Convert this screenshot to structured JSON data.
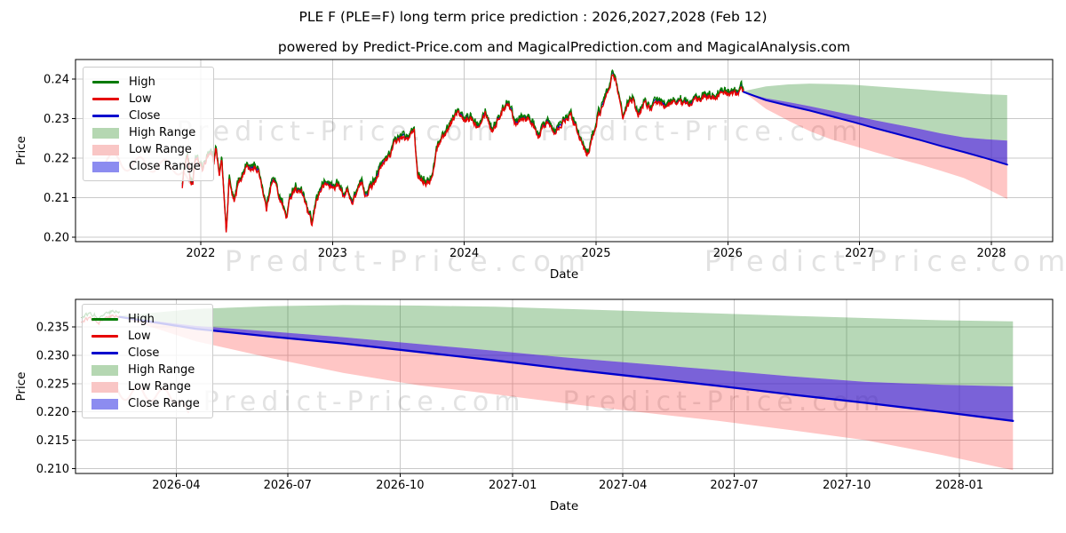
{
  "title": "PLE F (PLE=F) long term price prediction : 2026,2027,2028 (Feb 12)",
  "subtitle": "powered by Predict-Price.com and MagicalPrediction.com and MagicalAnalysis.com",
  "watermark": {
    "text": "Predict-Price.com",
    "signature_color": "rgba(225,70,70,0.40)"
  },
  "colors": {
    "grid": "#c9c9c9",
    "spine": "#000000",
    "high_line": "#007a00",
    "low_line": "#e60000",
    "close_line": "#0000cd",
    "high_range_fill": "rgba(15,125,15,0.30)",
    "low_range_fill": "rgba(255,35,30,0.26)",
    "close_range_fill": "rgba(25,25,230,0.58)"
  },
  "legend": {
    "items": [
      {
        "label": "High",
        "swatch": "line",
        "color": "#007a00"
      },
      {
        "label": "Low",
        "swatch": "line",
        "color": "#e60000"
      },
      {
        "label": "Close",
        "swatch": "line",
        "color": "#0000cd"
      },
      {
        "label": "High Range",
        "swatch": "patch",
        "color": "#b5d7b2"
      },
      {
        "label": "Low Range",
        "swatch": "patch",
        "color": "#f9c6c5"
      },
      {
        "label": "Close Range",
        "swatch": "patch",
        "color": "#8c8cf0"
      }
    ]
  },
  "chart_data": [
    {
      "type": "line",
      "title": "",
      "xlabel": "Date",
      "ylabel": "Price",
      "xlim": [
        2021.05,
        2028.465
      ],
      "ylim": [
        0.1989,
        0.245
      ],
      "grid": true,
      "legend_position": "upper left",
      "x_ticks": [
        {
          "v": 2022,
          "label": "2022"
        },
        {
          "v": 2023,
          "label": "2023"
        },
        {
          "v": 2024,
          "label": "2024"
        },
        {
          "v": 2025,
          "label": "2025"
        },
        {
          "v": 2026,
          "label": "2026"
        },
        {
          "v": 2027,
          "label": "2027"
        },
        {
          "v": 2028,
          "label": "2028"
        }
      ],
      "y_ticks": [
        {
          "v": 0.2,
          "label": "0.20"
        },
        {
          "v": 0.21,
          "label": "0.21"
        },
        {
          "v": 0.22,
          "label": "0.22"
        },
        {
          "v": 0.23,
          "label": "0.23"
        },
        {
          "v": 0.24,
          "label": "0.24"
        }
      ],
      "historical": {
        "description": "daily High/Low/Close, Nov 2021 - Feb 2026; High ~ Low + 0.001, Close between",
        "anchors_t": [
          2021.86,
          2021.88,
          2021.9,
          2021.92,
          2021.94,
          2021.96,
          2021.99,
          2022.02,
          2022.05,
          2022.08,
          2022.1,
          2022.115,
          2022.14,
          2022.16,
          2022.18,
          2022.195,
          2022.215,
          2022.235,
          2022.255,
          2022.285,
          2022.32,
          2022.35,
          2022.38,
          2022.41,
          2022.45,
          2022.475,
          2022.5,
          2022.53,
          2022.56,
          2022.59,
          2022.62,
          2022.65,
          2022.68,
          2022.71,
          2022.74,
          2022.78,
          2022.81,
          2022.845,
          2022.88,
          2022.92,
          2022.96,
          2023.0,
          2023.04,
          2023.08,
          2023.12,
          2023.15,
          2023.18,
          2023.22,
          2023.25,
          2023.3,
          2023.35,
          2023.4,
          2023.45,
          2023.48,
          2023.52,
          2023.56,
          2023.6,
          2023.62,
          2023.645,
          2023.68,
          2023.72,
          2023.76,
          2023.79,
          2023.82,
          2023.86,
          2023.9,
          2023.95,
          2024.0,
          2024.05,
          2024.1,
          2024.16,
          2024.21,
          2024.27,
          2024.33,
          2024.38,
          2024.44,
          2024.5,
          2024.56,
          2024.62,
          2024.68,
          2024.74,
          2024.8,
          2024.85,
          2024.9,
          2024.93,
          2024.97,
          2025.02,
          2025.07,
          2025.11,
          2025.13,
          2025.16,
          2025.2,
          2025.24,
          2025.28,
          2025.32,
          2025.36,
          2025.42,
          2025.48,
          2025.54,
          2025.6,
          2025.66,
          2025.72,
          2025.78,
          2025.84,
          2025.9,
          2025.96,
          2026.02,
          2026.07,
          2026.1,
          2026.12
        ],
        "anchors_price": [
          0.213,
          0.2182,
          0.2212,
          0.2145,
          0.2128,
          0.22,
          0.2185,
          0.217,
          0.2208,
          0.2215,
          0.219,
          0.2226,
          0.2152,
          0.219,
          0.2092,
          0.2003,
          0.2148,
          0.211,
          0.2085,
          0.2135,
          0.2158,
          0.2182,
          0.2166,
          0.218,
          0.2154,
          0.2112,
          0.2068,
          0.213,
          0.2144,
          0.2106,
          0.2084,
          0.2046,
          0.21,
          0.2124,
          0.2118,
          0.2104,
          0.2066,
          0.2028,
          0.2096,
          0.2126,
          0.2134,
          0.2124,
          0.2133,
          0.2105,
          0.2118,
          0.2082,
          0.2112,
          0.2136,
          0.2108,
          0.213,
          0.2164,
          0.2192,
          0.2218,
          0.2242,
          0.2252,
          0.2244,
          0.2262,
          0.2268,
          0.2158,
          0.2148,
          0.2136,
          0.2152,
          0.2222,
          0.2248,
          0.2262,
          0.2292,
          0.2316,
          0.229,
          0.2302,
          0.2282,
          0.2318,
          0.2268,
          0.2306,
          0.2345,
          0.229,
          0.2304,
          0.23,
          0.225,
          0.2292,
          0.227,
          0.2288,
          0.2312,
          0.228,
          0.223,
          0.2205,
          0.2248,
          0.231,
          0.2345,
          0.239,
          0.2415,
          0.2385,
          0.2296,
          0.233,
          0.2346,
          0.231,
          0.2338,
          0.2326,
          0.2338,
          0.233,
          0.2346,
          0.2336,
          0.2342,
          0.2348,
          0.2354,
          0.2358,
          0.2362,
          0.2366,
          0.236,
          0.2372,
          0.2368
        ]
      },
      "prediction": {
        "t": [
          2026.12,
          2026.29,
          2026.46,
          2026.62,
          2026.79,
          2026.96,
          2027.12,
          2027.29,
          2027.46,
          2027.62,
          2027.79,
          2027.96,
          2028.12
        ],
        "close": [
          0.2368,
          0.2347,
          0.2333,
          0.2321,
          0.2306,
          0.2291,
          0.2276,
          0.2261,
          0.2246,
          0.2231,
          0.2216,
          0.22,
          0.2184
        ],
        "close_range_upper": [
          0.2368,
          0.2352,
          0.2342,
          0.2332,
          0.232,
          0.2308,
          0.2296,
          0.2285,
          0.2274,
          0.2263,
          0.2253,
          0.2248,
          0.2245
        ],
        "high_range_upper": [
          0.237,
          0.2382,
          0.2387,
          0.2389,
          0.2388,
          0.2386,
          0.2382,
          0.2378,
          0.2374,
          0.237,
          0.2366,
          0.2362,
          0.236
        ],
        "low_range_lower": [
          0.2368,
          0.2325,
          0.2295,
          0.2269,
          0.2247,
          0.2231,
          0.2215,
          0.2199,
          0.2184,
          0.2168,
          0.215,
          0.2124,
          0.2097
        ]
      }
    },
    {
      "type": "line",
      "title": "",
      "xlabel": "Date",
      "ylabel": "Price",
      "xlim": [
        2026.021,
        2028.209
      ],
      "ylim": [
        0.2091,
        0.2399
      ],
      "grid": true,
      "legend_position": "upper left",
      "x_ticks": [
        {
          "v": 2026.2466,
          "label": "2026-04"
        },
        {
          "v": 2026.4959,
          "label": "2026-07"
        },
        {
          "v": 2026.7479,
          "label": "2026-10"
        },
        {
          "v": 2027.0,
          "label": "2027-01"
        },
        {
          "v": 2027.2466,
          "label": "2027-04"
        },
        {
          "v": 2027.4959,
          "label": "2027-07"
        },
        {
          "v": 2027.7479,
          "label": "2027-10"
        },
        {
          "v": 2028.0,
          "label": "2028-01"
        }
      ],
      "y_ticks": [
        {
          "v": 0.21,
          "label": "0.210"
        },
        {
          "v": 0.215,
          "label": "0.215"
        },
        {
          "v": 0.22,
          "label": "0.220"
        },
        {
          "v": 0.225,
          "label": "0.225"
        },
        {
          "v": 0.23,
          "label": "0.230"
        },
        {
          "v": 0.235,
          "label": "0.235"
        }
      ],
      "historical_tail": {
        "t": [
          2026.035,
          2026.055,
          2026.075,
          2026.095,
          2026.12
        ],
        "price": [
          0.236,
          0.2367,
          0.236,
          0.237,
          0.2368
        ]
      },
      "prediction": {
        "t": [
          2026.12,
          2026.29,
          2026.46,
          2026.62,
          2026.79,
          2026.96,
          2027.12,
          2027.29,
          2027.46,
          2027.62,
          2027.79,
          2027.96,
          2028.12
        ],
        "close": [
          0.2368,
          0.2347,
          0.2333,
          0.2321,
          0.2306,
          0.2291,
          0.2276,
          0.2261,
          0.2246,
          0.2231,
          0.2216,
          0.22,
          0.2184
        ],
        "close_range_upper": [
          0.2368,
          0.2352,
          0.2342,
          0.2332,
          0.232,
          0.2308,
          0.2296,
          0.2285,
          0.2274,
          0.2263,
          0.2253,
          0.2248,
          0.2245
        ],
        "high_range_upper": [
          0.237,
          0.2382,
          0.2387,
          0.2389,
          0.2388,
          0.2386,
          0.2382,
          0.2378,
          0.2374,
          0.237,
          0.2366,
          0.2362,
          0.236
        ],
        "low_range_lower": [
          0.2368,
          0.2325,
          0.2295,
          0.2269,
          0.2247,
          0.2231,
          0.2215,
          0.2199,
          0.2184,
          0.2168,
          0.215,
          0.2124,
          0.2097
        ]
      }
    }
  ]
}
